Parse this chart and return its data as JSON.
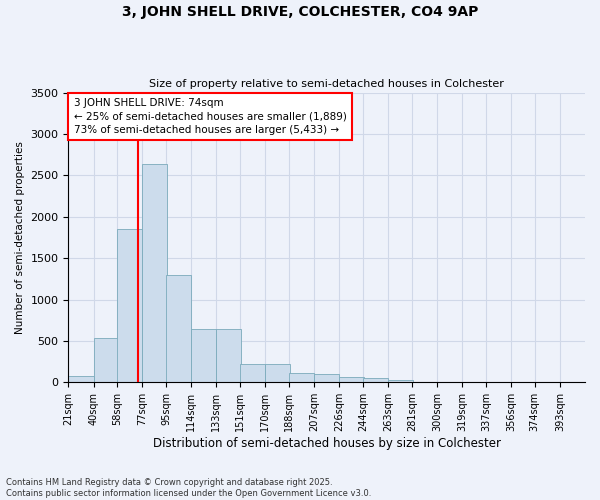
{
  "title1": "3, JOHN SHELL DRIVE, COLCHESTER, CO4 9AP",
  "title2": "Size of property relative to semi-detached houses in Colchester",
  "xlabel": "Distribution of semi-detached houses by size in Colchester",
  "ylabel": "Number of semi-detached properties",
  "footnote": "Contains HM Land Registry data © Crown copyright and database right 2025.\nContains public sector information licensed under the Open Government Licence v3.0.",
  "bin_labels": [
    "21sqm",
    "40sqm",
    "58sqm",
    "77sqm",
    "95sqm",
    "114sqm",
    "133sqm",
    "151sqm",
    "170sqm",
    "188sqm",
    "207sqm",
    "226sqm",
    "244sqm",
    "263sqm",
    "281sqm",
    "300sqm",
    "319sqm",
    "337sqm",
    "356sqm",
    "374sqm",
    "393sqm"
  ],
  "bar_heights": [
    80,
    530,
    1850,
    2640,
    1300,
    650,
    650,
    220,
    220,
    110,
    95,
    70,
    50,
    30,
    10,
    5,
    2,
    1,
    1,
    0,
    0
  ],
  "bar_color": "#ccdcec",
  "bar_edge_color": "#7aaabb",
  "red_line_x": 74,
  "bin_edges": [
    21,
    40,
    58,
    77,
    95,
    114,
    133,
    151,
    170,
    188,
    207,
    226,
    244,
    263,
    281,
    300,
    319,
    337,
    356,
    374,
    393
  ],
  "bin_width": 19,
  "ylim": [
    0,
    3500
  ],
  "yticks": [
    0,
    500,
    1000,
    1500,
    2000,
    2500,
    3000,
    3500
  ],
  "annotation_text": "3 JOHN SHELL DRIVE: 74sqm\n← 25% of semi-detached houses are smaller (1,889)\n73% of semi-detached houses are larger (5,433) →",
  "annotation_box_color": "white",
  "annotation_box_edge": "red",
  "grid_color": "#d0d8e8",
  "bg_color": "#eef2fa"
}
